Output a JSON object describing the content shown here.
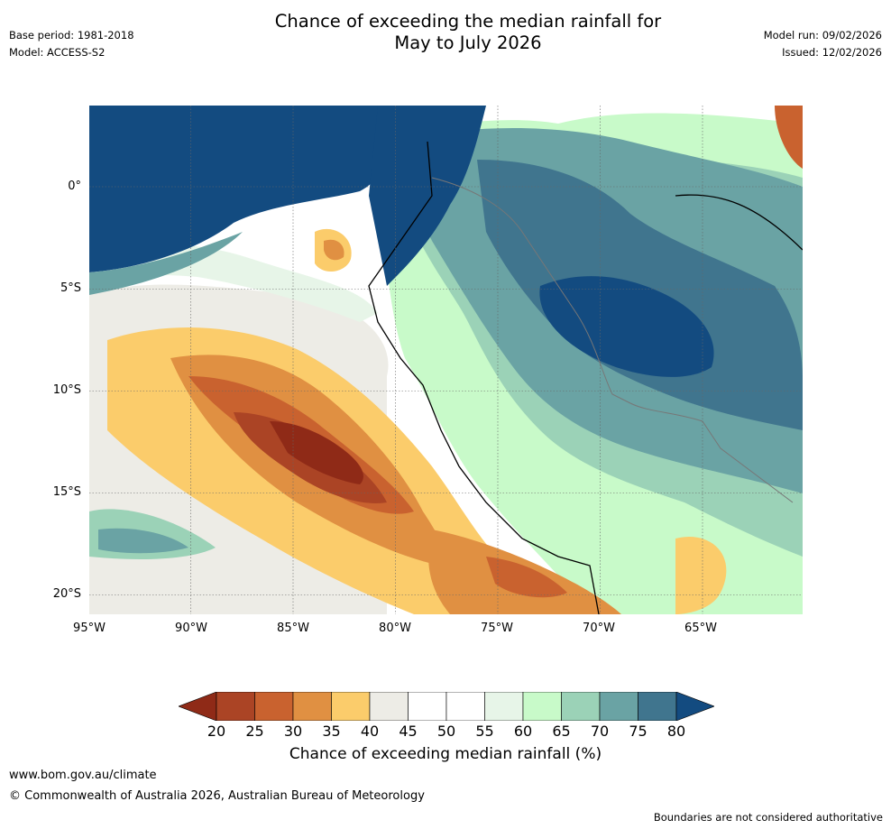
{
  "header": {
    "title_line1": "Chance of exceeding the median rainfall for",
    "title_line2": "May to July 2026",
    "base_period": "Base period: 1981-2018",
    "model": "Model: ACCESS-S2",
    "model_run": "Model run: 09/02/2026",
    "issued": "Issued: 12/02/2026"
  },
  "map": {
    "lat_labels": [
      "0°",
      "5°S",
      "10°S",
      "15°S",
      "20°S"
    ],
    "lon_labels": [
      "95°W",
      "90°W",
      "85°W",
      "80°W",
      "75°W",
      "70°W",
      "65°W"
    ],
    "extent": {
      "lon_min": -95,
      "lon_max": -60.2,
      "lat_min": -21,
      "lat_max": 4
    }
  },
  "legend": {
    "label": "Chance of exceeding median rainfall (%)",
    "ticks": [
      "20",
      "25",
      "30",
      "35",
      "40",
      "45",
      "50",
      "55",
      "60",
      "65",
      "70",
      "75",
      "80"
    ],
    "under_color": "#8f2a17",
    "over_color": "#134b80",
    "colors": [
      "#ab4425",
      "#c9622f",
      "#e09042",
      "#fbcc6b",
      "#edece6",
      "#ffffff",
      "#ffffff",
      "#e7f5e8",
      "#c8fac9",
      "#9bd2b7",
      "#6aa3a4",
      "#40758e"
    ]
  },
  "footer": {
    "url": "www.bom.gov.au/climate",
    "copyright": "© Commonwealth of Australia 2026, Australian Bureau of Meteorology",
    "disclaimer": "Boundaries are not considered authoritative"
  }
}
